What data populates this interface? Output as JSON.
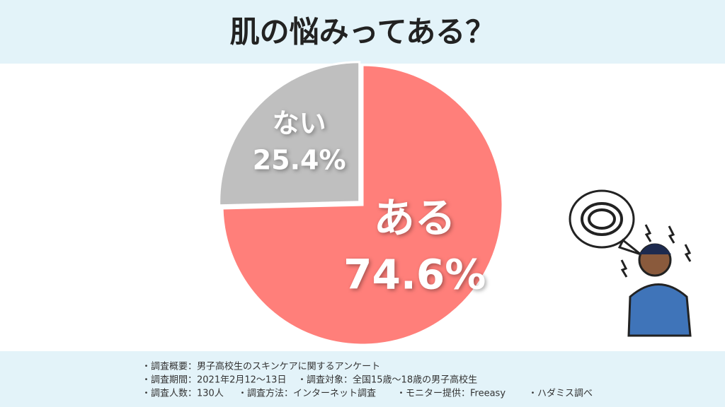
{
  "chart_data": {
    "type": "pie",
    "title": "肌の悩みってある？",
    "categories": [
      "ある",
      "ない"
    ],
    "values": [
      74.6,
      25.4
    ],
    "value_labels": [
      "74.6%",
      "25.4%"
    ],
    "colors": [
      "#ff7f7a",
      "#bfbfbf"
    ]
  },
  "notes": [
    [
      "・調査概要：男子高校生のスキンケアに関するアンケート"
    ],
    [
      "・調査期間：2021年2月12〜13日",
      "・調査対象：全国15歳〜18歳の男子高校生"
    ],
    [
      "・調査人数：130人",
      "・調査方法：インターネット調査",
      "・モニター提供：Freeasy",
      "・ハダミス調べ"
    ]
  ]
}
